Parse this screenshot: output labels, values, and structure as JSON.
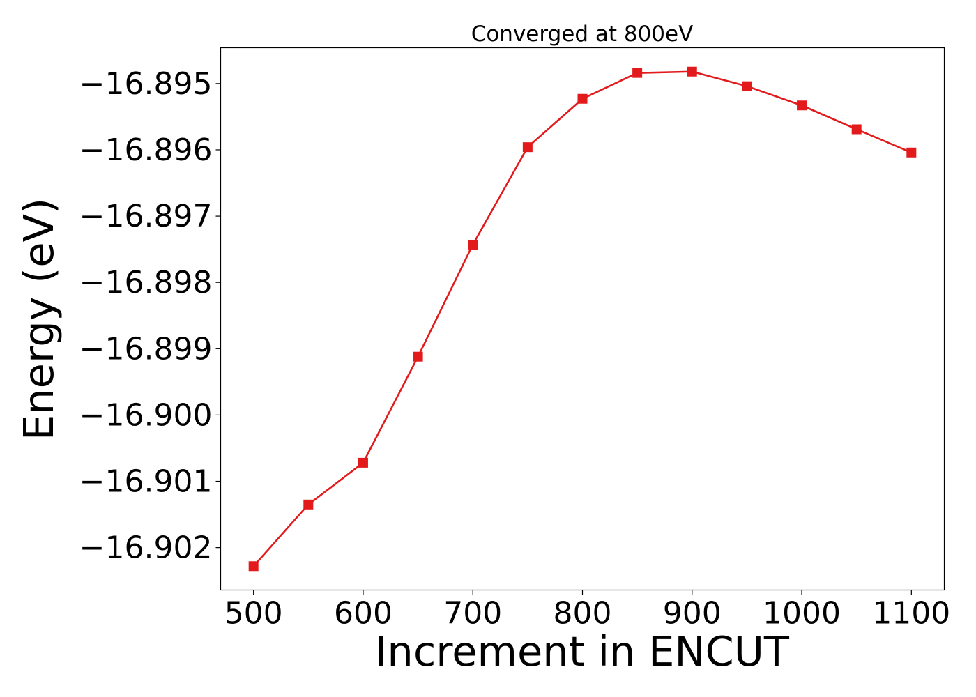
{
  "chart_data": {
    "type": "line",
    "title": "Converged at 800eV",
    "xlabel": "Increment in ENCUT",
    "ylabel": "Energy (eV)",
    "x": [
      500,
      550,
      600,
      650,
      700,
      750,
      800,
      850,
      900,
      950,
      1000,
      1050,
      1100
    ],
    "series": [
      {
        "values": [
          -16.90228,
          -16.90135,
          -16.90072,
          -16.89912,
          -16.89743,
          -16.89596,
          -16.89523,
          -16.89484,
          -16.89482,
          -16.89504,
          -16.89533,
          -16.89569,
          -16.89604
        ],
        "color": "#e31a1c",
        "marker": "square"
      }
    ],
    "xticks": [
      500,
      600,
      700,
      800,
      900,
      1000,
      1100
    ],
    "xtick_labels": [
      "500",
      "600",
      "700",
      "800",
      "900",
      "1000",
      "1100"
    ],
    "yticks": [
      -16.902,
      -16.901,
      -16.9,
      -16.899,
      -16.898,
      -16.897,
      -16.896,
      -16.895
    ],
    "ytick_labels": [
      "−16.902",
      "−16.901",
      "−16.900",
      "−16.899",
      "−16.898",
      "−16.897",
      "−16.896",
      "−16.895"
    ],
    "xlim": [
      470,
      1130
    ],
    "ylim": [
      -16.90264,
      -16.89446
    ],
    "grid": false,
    "legend": "none"
  }
}
